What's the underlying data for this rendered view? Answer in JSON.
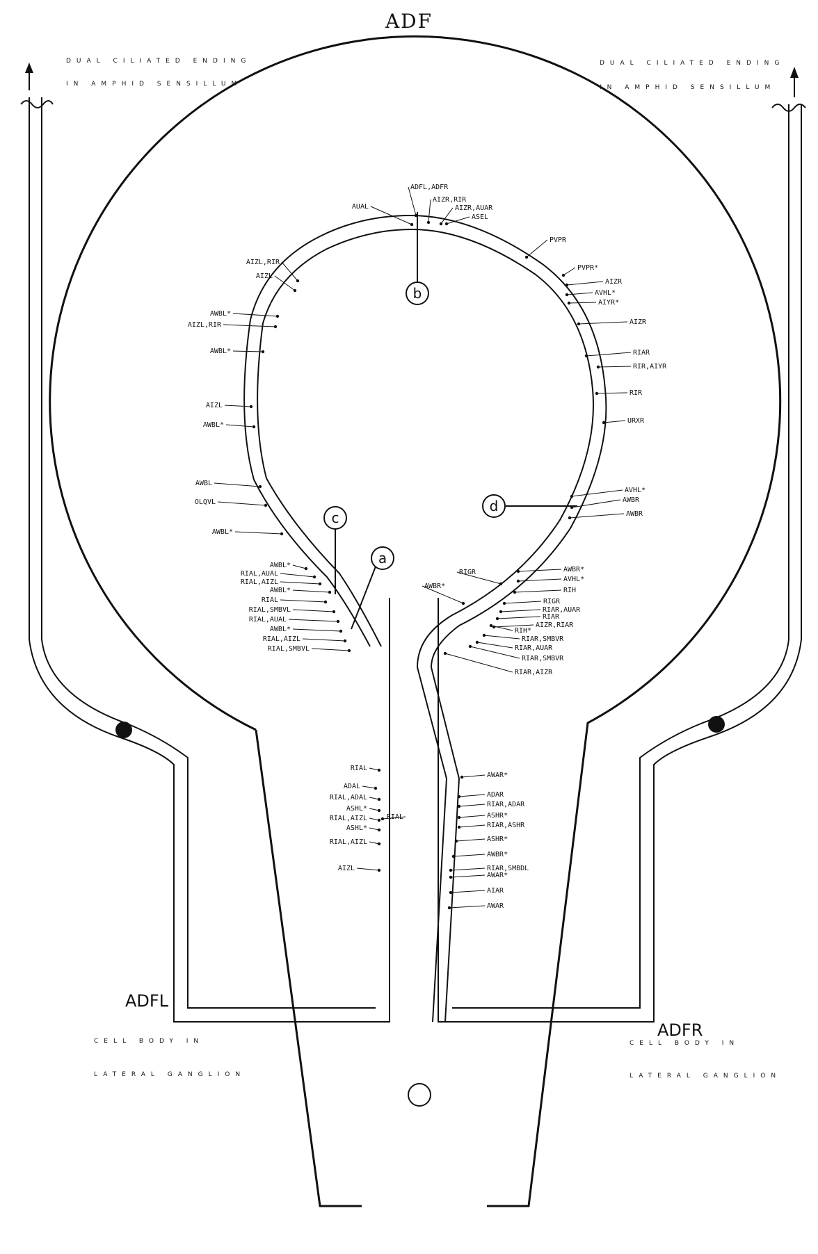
{
  "title": "ADF",
  "notes": {
    "left_top": [
      "DUAL CILIATED ENDING",
      "IN AMPHID SENSILLUM"
    ],
    "right_top": [
      "DUAL CILIATED ENDING",
      "IN AMPHID SENSILLUM"
    ],
    "left_cell": {
      "name": "ADFL",
      "lines": [
        "CELL BODY IN",
        "LATERAL GANGLION"
      ]
    },
    "right_cell": {
      "name": "ADFR",
      "lines": [
        "CELL BODY IN",
        "LATERAL GANGLION"
      ]
    }
  },
  "circle_labels": [
    "a",
    "b",
    "c",
    "d"
  ],
  "synapses_left_outer": [
    "AUAL",
    "AIZL,RIR",
    "AIZL",
    "AWBL*",
    "AIZL,RIR",
    "AWBL*",
    "AIZL",
    "AWBL*",
    "AWBL",
    "OLQVL",
    "AWBL*",
    "AWBL*",
    "RIAL,AUAL",
    "RIAL,AIZL",
    "AWBL*",
    "RIAL",
    "RIAL,SMBVL",
    "RIAL,AUAL",
    "AWBL*",
    "RIAL,AIZL",
    "RIAL,SMBVL"
  ],
  "synapses_top": [
    "ADFL,ADFR",
    "AIZR,RIR",
    "AIZR,AUAR",
    "ASEL"
  ],
  "synapses_right_outer": [
    "PVPR",
    "PVPR*",
    "AIZR",
    "AVHL*",
    "AIYR*",
    "AIZR",
    "RIAR",
    "RIR,AIYR",
    "RIR",
    "URXR",
    "AVHL*",
    "AWBR",
    "AWBR",
    "AWBR*",
    "AVHL*",
    "RIH",
    "RIGR",
    "RIAR,AUAR",
    "RIAR",
    "AIZR,RIAR"
  ],
  "synapses_right_inner": [
    "RIGR",
    "AWBR*",
    "RIH*",
    "RIAR,SMBVR",
    "RIAR,AUAR",
    "RIAR,SMBVR",
    "RIAR,AIZR"
  ],
  "synapses_left_stem": [
    "RIAL",
    "ADAL",
    "RIAL,ADAL",
    "ASHL*",
    "RIAL,AIZL",
    "ASHL*",
    "RIAL,AIZL",
    "AIZL",
    "RIAL"
  ],
  "synapses_right_stem": [
    "AWAR*",
    "ADAR",
    "RIAR,ADAR",
    "ASHR*",
    "RIAR,ASHR",
    "ASHR*",
    "AWBR*",
    "RIAR,SMBDL",
    "AWAR*",
    "AIAR",
    "AWAR"
  ]
}
